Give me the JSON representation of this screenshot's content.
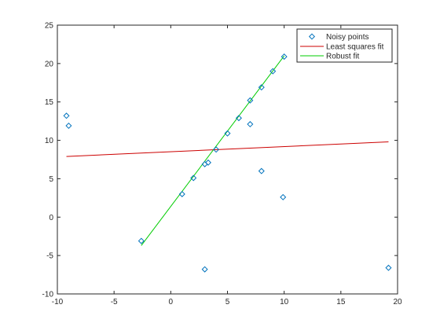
{
  "chart_data": {
    "type": "scatter",
    "title": "",
    "xlabel": "",
    "ylabel": "",
    "xlim": [
      -10,
      20
    ],
    "ylim": [
      -10,
      25
    ],
    "xticks": [
      -10,
      -5,
      0,
      5,
      10,
      15,
      20
    ],
    "yticks": [
      -10,
      -5,
      0,
      5,
      10,
      15,
      20,
      25
    ],
    "grid": false,
    "legend_position": "top-right",
    "series": [
      {
        "name": "Noisy points",
        "kind": "scatter",
        "marker": "diamond",
        "color": "#0072bd",
        "points": [
          [
            -9.2,
            13.2
          ],
          [
            -9.0,
            11.9
          ],
          [
            -2.6,
            -3.1
          ],
          [
            1.0,
            3.0
          ],
          [
            2.0,
            5.1
          ],
          [
            3.0,
            6.9
          ],
          [
            3.3,
            7.1
          ],
          [
            4.0,
            8.8
          ],
          [
            5.0,
            10.9
          ],
          [
            6.0,
            12.9
          ],
          [
            7.0,
            15.2
          ],
          [
            7.0,
            12.1
          ],
          [
            8.0,
            16.9
          ],
          [
            8.0,
            6.0
          ],
          [
            9.0,
            19.0
          ],
          [
            10.0,
            20.9
          ],
          [
            9.9,
            2.6
          ],
          [
            3.0,
            -6.8
          ],
          [
            19.2,
            -6.6
          ]
        ]
      },
      {
        "name": "Least squares fit",
        "kind": "line",
        "color": "#cc0000",
        "points": [
          [
            -9.2,
            7.9
          ],
          [
            19.2,
            9.8
          ]
        ]
      },
      {
        "name": "Robust fit",
        "kind": "line",
        "color": "#00cc00",
        "points": [
          [
            -2.6,
            -3.7
          ],
          [
            10.0,
            21.0
          ]
        ]
      }
    ]
  }
}
